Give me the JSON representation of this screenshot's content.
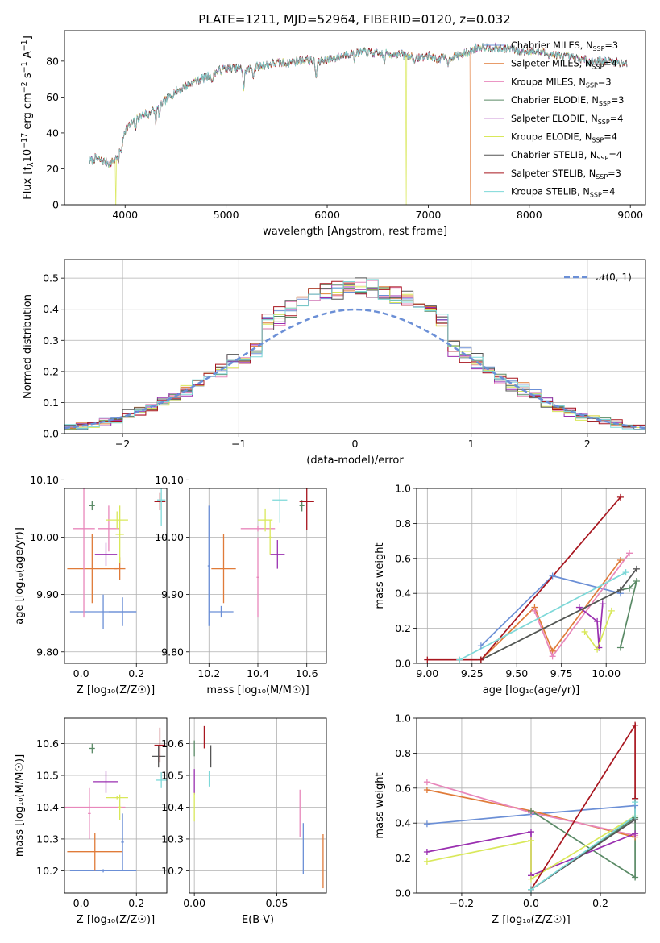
{
  "figure_title": "PLATE=1211, MJD=52964, FIBERID=0120, z=0.032",
  "colors": [
    "#6b8fd6",
    "#e07b39",
    "#e887bb",
    "#5a8a66",
    "#9a2fb0",
    "#d9e85a",
    "#555555",
    "#a8161f",
    "#7dd8d8"
  ],
  "chart_data": [
    {
      "type": "line",
      "name": "spectrum",
      "xlabel": "wavelength [Angstrom, rest frame]",
      "ylabel_main": "Flux [f",
      "ylabel_sub": "λ",
      "ylabel_rest": "10",
      "ylabel_exp": "−17",
      "ylabel_tail": " erg cm",
      "ylabel_exp2": "−2",
      "ylabel_s": " s",
      "ylabel_exp3": "−1",
      "ylabel_a": " A",
      "ylabel_exp4": "−1",
      "ylabel_close": "]",
      "xlim": [
        3400,
        9150
      ],
      "ylim": [
        0,
        97
      ],
      "xticks": [
        4000,
        5000,
        6000,
        7000,
        8000,
        9000
      ],
      "yticks": [
        0,
        20,
        40,
        60,
        80
      ],
      "legend_position": "right",
      "continuum": [
        [
          3650,
          24
        ],
        [
          3700,
          26
        ],
        [
          3750,
          25
        ],
        [
          3800,
          24
        ],
        [
          3850,
          23
        ],
        [
          3900,
          25
        ],
        [
          3950,
          31
        ],
        [
          4000,
          42
        ],
        [
          4100,
          47
        ],
        [
          4200,
          51
        ],
        [
          4300,
          53
        ],
        [
          4400,
          58
        ],
        [
          4500,
          63
        ],
        [
          4600,
          66
        ],
        [
          4700,
          69
        ],
        [
          4800,
          71
        ],
        [
          4900,
          74
        ],
        [
          5000,
          76
        ],
        [
          5100,
          76
        ],
        [
          5200,
          75
        ],
        [
          5300,
          77
        ],
        [
          5400,
          78
        ],
        [
          5500,
          79
        ],
        [
          5600,
          79
        ],
        [
          5700,
          80
        ],
        [
          5800,
          81
        ],
        [
          5900,
          79
        ],
        [
          6000,
          81
        ],
        [
          6100,
          82
        ],
        [
          6200,
          84
        ],
        [
          6300,
          85
        ],
        [
          6400,
          85
        ],
        [
          6500,
          84
        ],
        [
          6600,
          84
        ],
        [
          6700,
          84
        ],
        [
          6800,
          83
        ],
        [
          6900,
          82
        ],
        [
          7000,
          83
        ],
        [
          7100,
          81
        ],
        [
          7200,
          82
        ],
        [
          7300,
          83
        ],
        [
          7400,
          85
        ],
        [
          7500,
          88
        ],
        [
          7600,
          88
        ],
        [
          7700,
          87
        ],
        [
          7800,
          87
        ],
        [
          7900,
          85
        ],
        [
          8000,
          86
        ],
        [
          8100,
          85
        ],
        [
          8200,
          84
        ],
        [
          8300,
          83
        ],
        [
          8400,
          82
        ],
        [
          8500,
          81
        ],
        [
          8600,
          80
        ],
        [
          8700,
          80
        ],
        [
          8800,
          80
        ],
        [
          8900,
          79
        ],
        [
          8970,
          79
        ]
      ],
      "absorption": [
        [
          3934,
          -6
        ],
        [
          3968,
          -5
        ],
        [
          4102,
          -5
        ],
        [
          4226,
          -3
        ],
        [
          4304,
          -7
        ],
        [
          4340,
          -6
        ],
        [
          4861,
          -6
        ],
        [
          5175,
          -11
        ],
        [
          5270,
          -5
        ],
        [
          5890,
          -9
        ],
        [
          6270,
          -4
        ],
        [
          6563,
          -5
        ],
        [
          6870,
          -4
        ],
        [
          7200,
          -4
        ]
      ],
      "dropouts": [
        {
          "series": 5,
          "x": 3910
        },
        {
          "series": 5,
          "x": 6780
        },
        {
          "series": 1,
          "x": 7420
        }
      ],
      "series": [
        {
          "name": "Chabrier MILES",
          "nssp": "3"
        },
        {
          "name": "Salpeter MILES",
          "nssp": "4"
        },
        {
          "name": "Kroupa MILES",
          "nssp": "3"
        },
        {
          "name": "Chabrier ELODIE",
          "nssp": "3"
        },
        {
          "name": "Salpeter ELODIE",
          "nssp": "4"
        },
        {
          "name": "Kroupa ELODIE",
          "nssp": "4"
        },
        {
          "name": "Chabrier STELIB",
          "nssp": "4"
        },
        {
          "name": "Salpeter STELIB",
          "nssp": "3"
        },
        {
          "name": "Kroupa STELIB",
          "nssp": "4"
        }
      ],
      "legend_sub": "SSP"
    },
    {
      "type": "histogram",
      "name": "residuals",
      "xlabel": "(data-model)/error",
      "ylabel": "Normed distribution",
      "xlim": [
        -2.5,
        2.5
      ],
      "ylim": [
        0,
        0.56
      ],
      "xticks": [
        -2,
        -1,
        0,
        1,
        2
      ],
      "yticks": [
        0.0,
        0.1,
        0.2,
        0.3,
        0.4,
        0.5
      ],
      "bin_width": 0.1,
      "bin_start": -2.5,
      "legend": "𝒩(0, 1)",
      "legend_position": "top-right",
      "gaussian": {
        "mu": 0,
        "sigma": 1
      }
    },
    {
      "type": "scatter",
      "name": "age-vs-Z",
      "xlabel": "Z [log₁₀(Z/Z☉)]",
      "ylabel": "age  [log₁₀(age/yr)]",
      "xlim": [
        -0.06,
        0.31
      ],
      "ylim": [
        9.78,
        10.085
      ],
      "xticks": [
        0.0,
        0.2
      ],
      "yticks": [
        9.8,
        9.9,
        10.0,
        10.1
      ],
      "points": [
        {
          "s": 0,
          "x": 0.08,
          "y": 9.87,
          "ex": 0.12,
          "ey": 0.03
        },
        {
          "s": 0,
          "x": 0.15,
          "y": 9.87,
          "ex": 0.05,
          "ey": 0.025
        },
        {
          "s": 1,
          "x": 0.04,
          "y": 9.945,
          "ex": 0.09,
          "ey": 0.06
        },
        {
          "s": 1,
          "x": 0.14,
          "y": 9.945,
          "ex": 0.02,
          "ey": 0.02
        },
        {
          "s": 2,
          "x": 0.01,
          "y": 10.015,
          "ex": 0.04,
          "ey": 0.155
        },
        {
          "s": 2,
          "x": 0.1,
          "y": 10.015,
          "ex": 0.04,
          "ey": 0.04
        },
        {
          "s": 3,
          "x": 0.04,
          "y": 10.055,
          "ex": 0.01,
          "ey": 0.008
        },
        {
          "s": 4,
          "x": 0.09,
          "y": 9.97,
          "ex": 0.04,
          "ey": 0.02
        },
        {
          "s": 5,
          "x": 0.13,
          "y": 10.03,
          "ex": 0.04,
          "ey": 0.015
        },
        {
          "s": 5,
          "x": 0.14,
          "y": 10.005,
          "ex": 0.015,
          "ey": 0.05
        },
        {
          "s": 6,
          "x": 0.28,
          "y": 10.125,
          "ex": 0.02,
          "ey": 0.025
        },
        {
          "s": 7,
          "x": 0.285,
          "y": 10.062,
          "ex": 0.02,
          "ey": 0.015
        },
        {
          "s": 8,
          "x": 0.29,
          "y": 10.065,
          "ex": 0.015,
          "ey": 0.045
        }
      ]
    },
    {
      "type": "scatter",
      "name": "age-vs-mass",
      "xlabel": "mass [log₁₀(M/M☉)]",
      "ylabel": "",
      "xlim": [
        10.12,
        10.68
      ],
      "ylim": [
        9.78,
        10.085
      ],
      "xticks": [
        10.2,
        10.4,
        10.6
      ],
      "yticks": [
        9.8,
        9.9,
        10.0,
        10.1
      ],
      "points": [
        {
          "s": 0,
          "x": 10.2,
          "y": 9.95,
          "ex": 0.005,
          "ey": 0.105
        },
        {
          "s": 0,
          "x": 10.25,
          "y": 9.87,
          "ex": 0.05,
          "ey": 0.01
        },
        {
          "s": 1,
          "x": 10.26,
          "y": 9.945,
          "ex": 0.05,
          "ey": 0.06
        },
        {
          "s": 2,
          "x": 10.4,
          "y": 9.93,
          "ex": 0.005,
          "ey": 0.07
        },
        {
          "s": 2,
          "x": 10.4,
          "y": 10.015,
          "ex": 0.07,
          "ey": 0.005
        },
        {
          "s": 3,
          "x": 10.58,
          "y": 10.055,
          "ex": 0.01,
          "ey": 0.01
        },
        {
          "s": 4,
          "x": 10.48,
          "y": 9.97,
          "ex": 0.03,
          "ey": 0.025
        },
        {
          "s": 5,
          "x": 10.43,
          "y": 10.03,
          "ex": 0.03,
          "ey": 0.02
        },
        {
          "s": 5,
          "x": 10.45,
          "y": 10.0,
          "ex": 0.005,
          "ey": 0.03
        },
        {
          "s": 6,
          "x": 10.56,
          "y": 10.125,
          "ex": 0.03,
          "ey": 0.04
        },
        {
          "s": 7,
          "x": 10.6,
          "y": 10.062,
          "ex": 0.03,
          "ey": 0.05
        },
        {
          "s": 8,
          "x": 10.49,
          "y": 10.065,
          "ex": 0.03,
          "ey": 0.04
        }
      ]
    },
    {
      "type": "line",
      "name": "weight-vs-age",
      "xlabel": "age  [log₁₀(age/yr)]",
      "ylabel": "mass weight",
      "xlim": [
        8.94,
        10.22
      ],
      "ylim": [
        0,
        1.0
      ],
      "xticks": [
        9.0,
        9.25,
        9.5,
        9.75,
        10.0
      ],
      "yticks": [
        0.0,
        0.2,
        0.4,
        0.6,
        0.8,
        1.0
      ],
      "series": [
        {
          "s": 0,
          "pts": [
            [
              9.3,
              0.1
            ],
            [
              9.7,
              0.5
            ],
            [
              10.08,
              0.4
            ]
          ]
        },
        {
          "s": 1,
          "pts": [
            [
              9.3,
              0.02
            ],
            [
              9.6,
              0.32
            ],
            [
              9.7,
              0.07
            ],
            [
              10.08,
              0.59
            ]
          ]
        },
        {
          "s": 2,
          "pts": [
            [
              9.6,
              0.3
            ],
            [
              9.7,
              0.04
            ],
            [
              10.13,
              0.63
            ]
          ]
        },
        {
          "s": 3,
          "pts": [
            [
              9.3,
              0.02
            ],
            [
              10.08,
              0.42
            ],
            [
              10.13,
              0.43
            ],
            [
              10.17,
              0.47
            ],
            [
              10.08,
              0.09
            ]
          ]
        },
        {
          "s": 4,
          "pts": [
            [
              9.85,
              0.32
            ],
            [
              9.95,
              0.24
            ],
            [
              9.96,
              0.09
            ],
            [
              9.98,
              0.34
            ]
          ]
        },
        {
          "s": 5,
          "pts": [
            [
              9.88,
              0.18
            ],
            [
              9.95,
              0.08
            ],
            [
              10.03,
              0.3
            ]
          ]
        },
        {
          "s": 6,
          "pts": [
            [
              9.3,
              0.02
            ],
            [
              10.08,
              0.42
            ],
            [
              10.17,
              0.54
            ]
          ]
        },
        {
          "s": 7,
          "pts": [
            [
              9.0,
              0.02
            ],
            [
              9.3,
              0.02
            ],
            [
              10.08,
              0.95
            ]
          ]
        },
        {
          "s": 8,
          "pts": [
            [
              9.18,
              0.02
            ],
            [
              10.11,
              0.52
            ]
          ]
        }
      ]
    },
    {
      "type": "scatter",
      "name": "mass-vs-Z",
      "xlabel": "Z [log₁₀(Z/Z☉)]",
      "ylabel": "mass [log₁₀(M/M☉)]",
      "xlim": [
        -0.06,
        0.31
      ],
      "ylim": [
        10.13,
        10.68
      ],
      "xticks": [
        0.0,
        0.2
      ],
      "yticks": [
        10.2,
        10.3,
        10.4,
        10.5,
        10.6
      ],
      "points": [
        {
          "s": 0,
          "x": 0.08,
          "y": 10.2,
          "ex": 0.12,
          "ey": 0.005
        },
        {
          "s": 0,
          "x": 0.15,
          "y": 10.29,
          "ex": 0.005,
          "ey": 0.09
        },
        {
          "s": 1,
          "x": 0.05,
          "y": 10.26,
          "ex": 0.1,
          "ey": 0.06
        },
        {
          "s": 2,
          "x": 0.03,
          "y": 10.4,
          "ex": 0.13,
          "ey": 0.005
        },
        {
          "s": 2,
          "x": 0.03,
          "y": 10.38,
          "ex": 0.005,
          "ey": 0.08
        },
        {
          "s": 3,
          "x": 0.04,
          "y": 10.585,
          "ex": 0.01,
          "ey": 0.015
        },
        {
          "s": 4,
          "x": 0.09,
          "y": 10.48,
          "ex": 0.045,
          "ey": 0.035
        },
        {
          "s": 5,
          "x": 0.13,
          "y": 10.43,
          "ex": 0.04,
          "ey": 0.005
        },
        {
          "s": 5,
          "x": 0.14,
          "y": 10.4,
          "ex": 0.005,
          "ey": 0.04
        },
        {
          "s": 6,
          "x": 0.28,
          "y": 10.56,
          "ex": 0.025,
          "ey": 0.035
        },
        {
          "s": 7,
          "x": 0.285,
          "y": 10.595,
          "ex": 0.02,
          "ey": 0.055
        },
        {
          "s": 8,
          "x": 0.29,
          "y": 10.485,
          "ex": 0.02,
          "ey": 0.025
        }
      ]
    },
    {
      "type": "scatter",
      "name": "mass-vs-EBV",
      "xlabel": "E(B-V)",
      "ylabel": "",
      "xlim": [
        -0.003,
        0.08
      ],
      "ylim": [
        10.13,
        10.68
      ],
      "xticks": [
        0.0,
        0.05
      ],
      "yticks": [
        10.2,
        10.3,
        10.4,
        10.5,
        10.6
      ],
      "points": [
        {
          "s": 0,
          "x": 0.066,
          "y": 10.27,
          "ex": 0,
          "ey": 0.08
        },
        {
          "s": 1,
          "x": 0.078,
          "y": 10.23,
          "ex": 0,
          "ey": 0.085
        },
        {
          "s": 2,
          "x": 0.064,
          "y": 10.38,
          "ex": 0,
          "ey": 0.075
        },
        {
          "s": 3,
          "x": 0.0,
          "y": 10.585,
          "ex": 0,
          "ey": 0.025
        },
        {
          "s": 4,
          "x": 0.0,
          "y": 10.48,
          "ex": 0,
          "ey": 0.04
        },
        {
          "s": 5,
          "x": 0.0,
          "y": 10.4,
          "ex": 0,
          "ey": 0.045
        },
        {
          "s": 6,
          "x": 0.01,
          "y": 10.56,
          "ex": 0,
          "ey": 0.035
        },
        {
          "s": 7,
          "x": 0.006,
          "y": 10.62,
          "ex": 0,
          "ey": 0.035
        },
        {
          "s": 8,
          "x": 0.009,
          "y": 10.49,
          "ex": 0,
          "ey": 0.025
        }
      ]
    },
    {
      "type": "line",
      "name": "weight-vs-Z",
      "xlabel": "Z [log₁₀(Z/Z☉)]",
      "ylabel": "mass weight",
      "xlim": [
        -0.33,
        0.33
      ],
      "ylim": [
        0,
        1.0
      ],
      "xticks": [
        -0.2,
        0.0,
        0.2
      ],
      "yticks": [
        0.0,
        0.2,
        0.4,
        0.6,
        0.8,
        1.0
      ],
      "series": [
        {
          "s": 0,
          "pts": [
            [
              -0.3,
              0.395
            ],
            [
              0.0,
              0.45
            ],
            [
              0.3,
              0.5
            ]
          ]
        },
        {
          "s": 1,
          "pts": [
            [
              -0.3,
              0.59
            ],
            [
              0.0,
              0.47
            ],
            [
              0.3,
              0.32
            ]
          ]
        },
        {
          "s": 2,
          "pts": [
            [
              -0.3,
              0.635
            ],
            [
              0.0,
              0.46
            ],
            [
              0.3,
              0.33
            ]
          ]
        },
        {
          "s": 3,
          "pts": [
            [
              0.0,
              0.47
            ],
            [
              0.3,
              0.09
            ],
            [
              0.3,
              0.43
            ],
            [
              0.0,
              0.02
            ]
          ]
        },
        {
          "s": 4,
          "pts": [
            [
              -0.3,
              0.235
            ],
            [
              0.0,
              0.35
            ],
            [
              0.0,
              0.1
            ],
            [
              0.3,
              0.34
            ]
          ]
        },
        {
          "s": 5,
          "pts": [
            [
              -0.3,
              0.18
            ],
            [
              0.0,
              0.3
            ],
            [
              0.0,
              0.08
            ],
            [
              0.3,
              0.44
            ]
          ]
        },
        {
          "s": 6,
          "pts": [
            [
              0.0,
              0.02
            ],
            [
              0.3,
              0.42
            ],
            [
              0.3,
              0.54
            ]
          ]
        },
        {
          "s": 7,
          "pts": [
            [
              0.0,
              0.02
            ],
            [
              0.3,
              0.96
            ],
            [
              0.3,
              0.54
            ]
          ]
        },
        {
          "s": 8,
          "pts": [
            [
              0.0,
              0.02
            ],
            [
              0.3,
              0.44
            ],
            [
              0.3,
              0.52
            ]
          ]
        }
      ]
    }
  ]
}
